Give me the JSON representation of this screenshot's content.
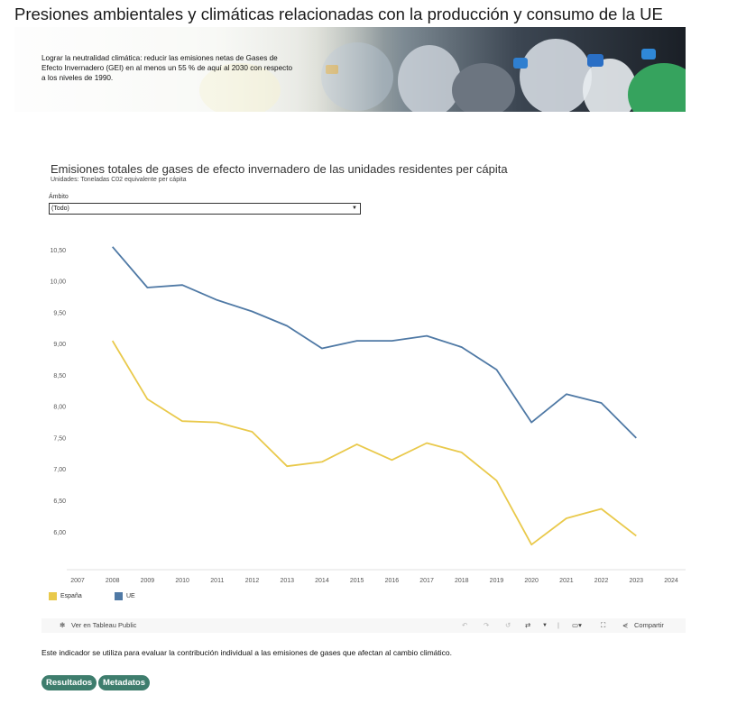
{
  "page_title": "Presiones ambientales y climáticas relacionadas con la producción y consumo de la UE",
  "banner": {
    "text": "Lograr la neutralidad climática: reducir las emisiones netas de Gases de Efecto Invernadero (GEI) en al menos un 55 % de aquí al 2030 con respecto a los niveles de 1990."
  },
  "filter": {
    "label": "Ámbito",
    "value": "(Todo)"
  },
  "toolbar": {
    "tableau_label": "Ver en Tableau Public",
    "share_label": "Compartir"
  },
  "indicator_text": "Este indicador se utiliza para evaluar la contribución individual a las emisiones de gases que afectan al cambio climático.",
  "buttons": {
    "results": "Resultados",
    "metadata": "Metadatos"
  },
  "chart_data": {
    "type": "line",
    "title": "Emisiones totales de gases de efecto invernadero de las unidades residentes per cápita",
    "subtitle": "Unidades: Toneladas C02 equivalente per cápita",
    "x": [
      2008,
      2009,
      2010,
      2011,
      2012,
      2013,
      2014,
      2015,
      2016,
      2017,
      2018,
      2019,
      2020,
      2021,
      2022,
      2023
    ],
    "x_ticks": [
      "2007",
      "2008",
      "2009",
      "2010",
      "2011",
      "2012",
      "2013",
      "2014",
      "2015",
      "2016",
      "2017",
      "2018",
      "2019",
      "2020",
      "2021",
      "2022",
      "2023",
      "2024"
    ],
    "y_ticks": [
      "6,00",
      "6,50",
      "7,00",
      "7,50",
      "8,00",
      "8,50",
      "9,00",
      "9,50",
      "10,00",
      "10,50"
    ],
    "xlim": [
      2007,
      2024
    ],
    "ylim": [
      5.4,
      10.72
    ],
    "grid": false,
    "legend_position": "bottom-left",
    "series": [
      {
        "name": "España",
        "color": "#e9c94b",
        "values": [
          9.05,
          8.12,
          7.77,
          7.75,
          7.6,
          7.05,
          7.12,
          7.4,
          7.15,
          7.42,
          7.27,
          6.82,
          5.8,
          6.22,
          6.37,
          5.94
        ]
      },
      {
        "name": "UE",
        "color": "#4f79a5",
        "values": [
          10.55,
          9.9,
          9.94,
          9.7,
          9.52,
          9.29,
          8.93,
          9.05,
          9.05,
          9.13,
          8.95,
          8.59,
          7.75,
          8.2,
          8.06,
          7.5
        ]
      }
    ]
  }
}
